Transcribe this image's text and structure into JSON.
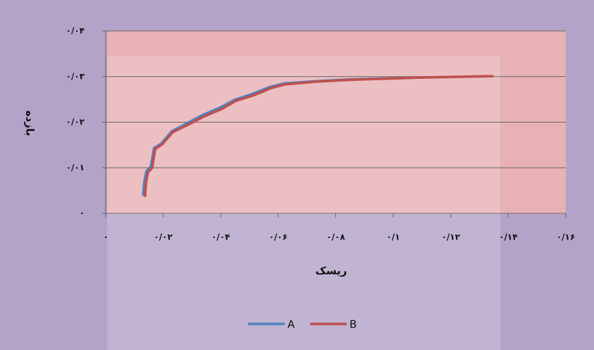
{
  "chart_data": {
    "type": "line",
    "xlabel": "ریسک",
    "ylabel": "بازده",
    "xlim": [
      0,
      0.16
    ],
    "ylim": [
      0,
      0.04
    ],
    "xticks": [
      {
        "value": 0,
        "label": "۰"
      },
      {
        "value": 0.02,
        "label": "۰/۰۲"
      },
      {
        "value": 0.04,
        "label": "۰/۰۴"
      },
      {
        "value": 0.06,
        "label": "۰/۰۶"
      },
      {
        "value": 0.08,
        "label": "۰/۰۸"
      },
      {
        "value": 0.1,
        "label": "۰/۱"
      },
      {
        "value": 0.12,
        "label": "۰/۱۲"
      },
      {
        "value": 0.14,
        "label": "۰/۱۴"
      },
      {
        "value": 0.16,
        "label": "۰/۱۶"
      }
    ],
    "yticks": [
      {
        "value": 0,
        "label": "۰"
      },
      {
        "value": 0.01,
        "label": "۰/۰۱"
      },
      {
        "value": 0.02,
        "label": "۰/۰۲"
      },
      {
        "value": 0.03,
        "label": "۰/۰۳"
      },
      {
        "value": 0.04,
        "label": "۰/۰۴"
      }
    ],
    "grid": true,
    "series": [
      {
        "name": "A",
        "color": "#4f81bd",
        "x": [
          0.013,
          0.0134,
          0.0142,
          0.0157,
          0.0168,
          0.0193,
          0.023,
          0.0278,
          0.0338,
          0.0398,
          0.0448,
          0.051,
          0.057,
          0.062,
          0.0732,
          0.0856,
          0.1102,
          0.1348
        ],
        "values": [
          0.0039,
          0.0069,
          0.0093,
          0.0103,
          0.0143,
          0.0153,
          0.018,
          0.0196,
          0.0216,
          0.0232,
          0.0249,
          0.0262,
          0.0277,
          0.0285,
          0.029,
          0.0294,
          0.0298,
          0.0301
        ]
      },
      {
        "name": "B",
        "color": "#c0504d",
        "x": [
          0.0137,
          0.014,
          0.0147,
          0.0162,
          0.0172,
          0.0196,
          0.0233,
          0.0282,
          0.0343,
          0.0404,
          0.0453,
          0.0515,
          0.0576,
          0.0625,
          0.0735,
          0.0858,
          0.1103,
          0.1348
        ],
        "values": [
          0.0036,
          0.0066,
          0.009,
          0.01,
          0.0141,
          0.0151,
          0.0178,
          0.0193,
          0.0213,
          0.0229,
          0.0247,
          0.0259,
          0.0275,
          0.0283,
          0.0289,
          0.0293,
          0.0298,
          0.0301
        ]
      }
    ]
  }
}
